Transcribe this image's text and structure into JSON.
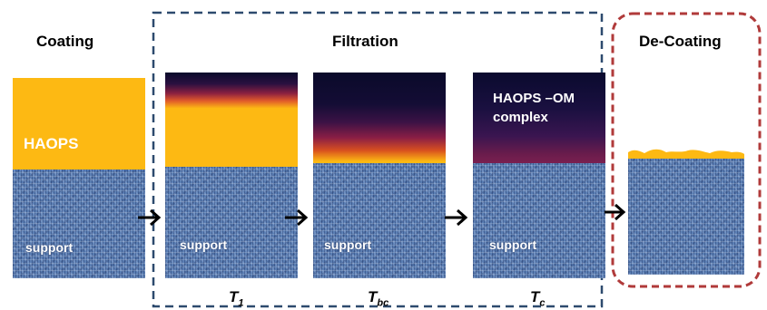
{
  "stages": {
    "coating": "Coating",
    "filtration": "Filtration",
    "decoating": "De-Coating"
  },
  "layers": {
    "haops": "HAOPS",
    "support": "support",
    "complex_line1": "HAOPS –OM",
    "complex_line2": "complex"
  },
  "time_points": [
    {
      "main": "T",
      "sub": "1"
    },
    {
      "main": "T",
      "sub": "bc"
    },
    {
      "main": "T",
      "sub": "c"
    }
  ],
  "colors": {
    "haops": "#fdb913",
    "support": "#5b7fb4",
    "filtration_border": "#2d4a6e",
    "decoating_border": "#b03a3a"
  }
}
